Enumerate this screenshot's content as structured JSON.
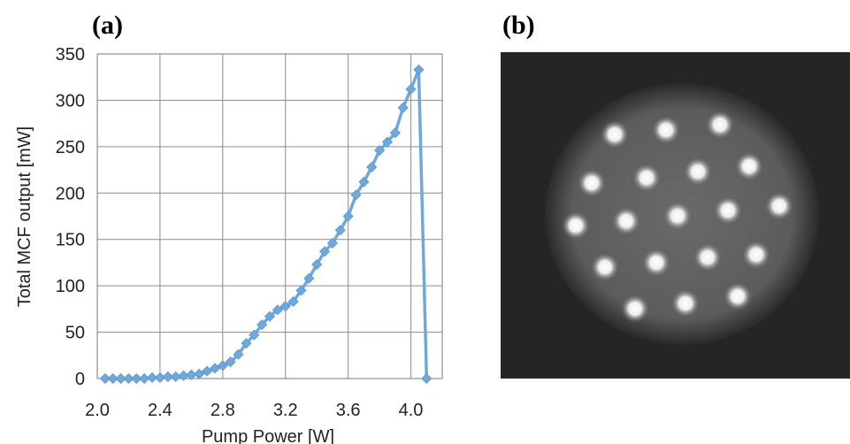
{
  "panels": {
    "a_label": "(a)",
    "b_label": "(b)"
  },
  "chart_data": {
    "type": "line",
    "title": "",
    "xlabel": "Pump Power [W]",
    "ylabel": "Total MCF output [mW]",
    "xlim": [
      2.0,
      4.2
    ],
    "ylim": [
      0,
      350
    ],
    "xticks": [
      2.0,
      2.4,
      2.8,
      3.2,
      3.6,
      4.0
    ],
    "xtick_labels": [
      "2.0",
      "2.4",
      "2.8",
      "3.2",
      "3.6",
      "4.0"
    ],
    "yticks": [
      0,
      50,
      100,
      150,
      200,
      250,
      300,
      350
    ],
    "ytick_labels": [
      "0",
      "50",
      "100",
      "150",
      "200",
      "250",
      "300",
      "350"
    ],
    "grid": true,
    "series_color": "#6fa8dc",
    "marker": "diamond",
    "series": [
      {
        "x": [
          2.05,
          2.1,
          2.15,
          2.2,
          2.25,
          2.3,
          2.35,
          2.4,
          2.45,
          2.5,
          2.55,
          2.6,
          2.65,
          2.7,
          2.75,
          2.8,
          2.85,
          2.9,
          2.95,
          3.0,
          3.05,
          3.1,
          3.15,
          3.2,
          3.25,
          3.3,
          3.35,
          3.4,
          3.45,
          3.5,
          3.55,
          3.6,
          3.65,
          3.7,
          3.75,
          3.8,
          3.85,
          3.9,
          3.95,
          4.0,
          4.05,
          4.1,
          4.15
        ],
        "y": [
          0,
          0,
          0,
          0,
          0,
          0,
          1,
          1,
          2,
          2,
          3,
          4,
          5,
          8,
          11,
          14,
          18,
          26,
          38,
          47,
          58,
          67,
          74,
          78,
          83,
          95,
          108,
          123,
          137,
          146,
          160,
          175,
          198,
          212,
          228,
          246,
          255,
          265,
          292,
          312,
          333,
          0,
          0
        ]
      }
    ]
  },
  "image_panel": {
    "spot_color": "#f2f2f2",
    "core_count": 19
  }
}
